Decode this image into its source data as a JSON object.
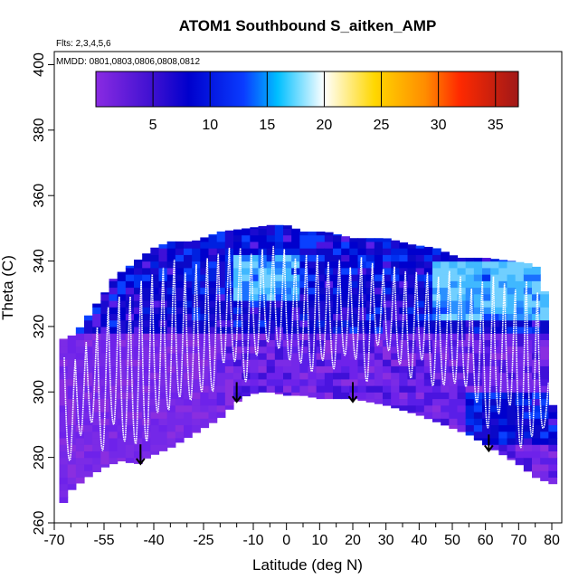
{
  "chart_data": {
    "type": "heatmap",
    "title": "ATOM1 Southbound S_aitken_AMP",
    "annotations": {
      "flights": "Flts: 2,3,4,5,6",
      "dates": "MMDD: 0801,0803,0806,0808,0812"
    },
    "xlabel": "Latitude (deg N)",
    "ylabel": "Theta (C)",
    "xlim": [
      -70,
      83
    ],
    "ylim": [
      260,
      404
    ],
    "x_ticks": [
      -70,
      -55,
      -40,
      -25,
      -10,
      0,
      10,
      20,
      30,
      40,
      50,
      60,
      70,
      80
    ],
    "x_tick_labels": [
      "-70",
      "-55",
      "-40",
      "-25",
      "-10",
      "0",
      "10",
      "20",
      "30",
      "40",
      "50",
      "60",
      "70",
      "80"
    ],
    "x_minor_ticks": [
      -65,
      -60,
      -50,
      -45,
      -35,
      -30,
      -20,
      -15,
      -5,
      5,
      15,
      25,
      35,
      45,
      55,
      65,
      75
    ],
    "y_ticks": [
      260,
      280,
      300,
      320,
      340,
      360,
      380,
      400
    ],
    "y_tick_labels": [
      "260",
      "280",
      "300",
      "320",
      "340",
      "360",
      "380",
      "400"
    ],
    "colorbar": {
      "range": [
        0,
        37
      ],
      "ticks": [
        5,
        10,
        15,
        20,
        25,
        30,
        35
      ],
      "tick_labels": [
        "5",
        "10",
        "15",
        "20",
        "25",
        "30",
        "35"
      ],
      "colors": [
        "#8a2be2",
        "#0000cd",
        "#00bfff",
        "#ffffff",
        "#ffd700",
        "#ff4500",
        "#a01818"
      ]
    },
    "profile_top": [
      [
        -68,
        316
      ],
      [
        -65,
        317
      ],
      [
        -62,
        320
      ],
      [
        -58,
        326
      ],
      [
        -55,
        330
      ],
      [
        -52,
        335
      ],
      [
        -48,
        338
      ],
      [
        -44,
        341
      ],
      [
        -40,
        344
      ],
      [
        -35,
        346
      ],
      [
        -28,
        346
      ],
      [
        -20,
        349
      ],
      [
        -12,
        350
      ],
      [
        -5,
        351
      ],
      [
        0,
        351
      ],
      [
        5,
        349
      ],
      [
        12,
        349
      ],
      [
        20,
        347
      ],
      [
        30,
        347
      ],
      [
        38,
        345
      ],
      [
        45,
        344
      ],
      [
        52,
        341
      ],
      [
        60,
        341
      ],
      [
        68,
        340
      ],
      [
        75,
        339
      ],
      [
        78,
        330
      ],
      [
        79,
        310
      ],
      [
        80,
        296
      ]
    ],
    "profile_bottom": [
      [
        -68,
        265
      ],
      [
        -65,
        270
      ],
      [
        -60,
        274
      ],
      [
        -55,
        277
      ],
      [
        -50,
        279
      ],
      [
        -45,
        278
      ],
      [
        -42,
        280
      ],
      [
        -35,
        283
      ],
      [
        -25,
        289
      ],
      [
        -20,
        292
      ],
      [
        -15,
        297
      ],
      [
        -12,
        299
      ],
      [
        -8,
        300
      ],
      [
        -5,
        300
      ],
      [
        0,
        299
      ],
      [
        5,
        299
      ],
      [
        10,
        298
      ],
      [
        15,
        298
      ],
      [
        20,
        298
      ],
      [
        30,
        296
      ],
      [
        40,
        293
      ],
      [
        50,
        289
      ],
      [
        55,
        287
      ],
      [
        60,
        284
      ],
      [
        65,
        281
      ],
      [
        70,
        278
      ],
      [
        75,
        274
      ],
      [
        80,
        272
      ]
    ],
    "flight_arrows": [
      [
        -44,
        284,
        278
      ],
      [
        -15,
        303,
        297
      ],
      [
        20,
        303,
        297
      ],
      [
        61,
        287,
        282
      ]
    ]
  }
}
